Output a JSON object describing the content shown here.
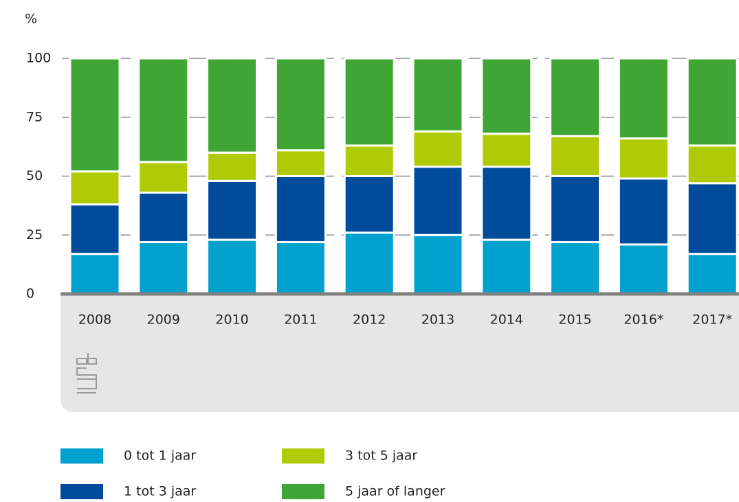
{
  "chart_data": {
    "type": "stacked_bar",
    "y_label": "%",
    "categories": [
      "2008",
      "2009",
      "2010",
      "2011",
      "2012",
      "2013",
      "2014",
      "2015",
      "2016*",
      "2017*"
    ],
    "series": [
      {
        "name": "0 tot 1 jaar",
        "color": "#00a1cd",
        "values": [
          17,
          22,
          23,
          22,
          26,
          25,
          23,
          22,
          21,
          17
        ]
      },
      {
        "name": "1 tot 3 jaar",
        "color": "#004b9b",
        "values": [
          21,
          21,
          25,
          28,
          24,
          29,
          31,
          28,
          28,
          30
        ]
      },
      {
        "name": "3 tot 5 jaar",
        "color": "#afcb05",
        "values": [
          14,
          13,
          12,
          11,
          13,
          15,
          14,
          17,
          17,
          16
        ]
      },
      {
        "name": "5 jaar of langer",
        "color": "#3fa535",
        "values": [
          48,
          44,
          40,
          39,
          37,
          31,
          32,
          33,
          34,
          37
        ]
      }
    ],
    "ylim": [
      0,
      100
    ],
    "yticks": [
      0,
      25,
      50,
      75,
      100
    ],
    "grid": true
  }
}
